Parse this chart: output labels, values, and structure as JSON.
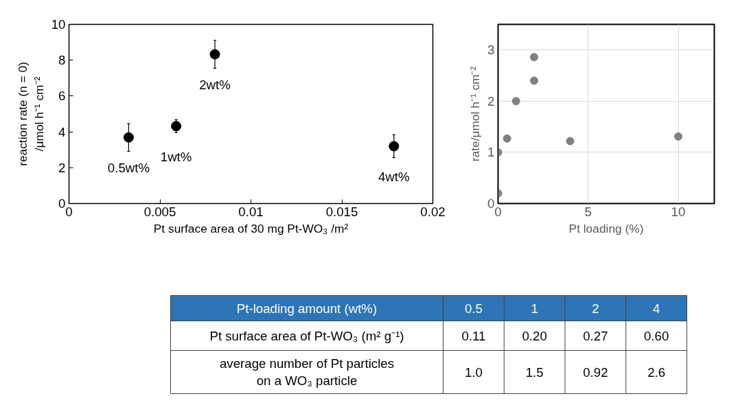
{
  "chart_data": [
    {
      "type": "scatter",
      "xlabel": "Pt surface area of 30 mg Pt-WO₃ /m²",
      "ylabel": "reaction rate (n = 0)\n/μmol h⁻¹ cm⁻²",
      "x": [
        0.00328,
        0.00589,
        0.00802,
        0.01786
      ],
      "values": [
        3.69,
        4.32,
        8.33,
        3.2
      ],
      "errors": [
        0.77,
        0.36,
        0.78,
        0.64
      ],
      "color": "#000000",
      "marker": "circle",
      "xlim": [
        0,
        0.02
      ],
      "ylim": [
        0,
        10
      ],
      "xticks": [
        0,
        0.005,
        0.01,
        0.015,
        0.02
      ],
      "yticks": [
        0,
        2,
        4,
        6,
        8,
        10
      ],
      "grid": false,
      "annotations": [
        {
          "text": "0.5wt%",
          "x": 0.00328,
          "y": 3.69
        },
        {
          "text": "1wt%",
          "x": 0.00589,
          "y": 4.32
        },
        {
          "text": "2wt%",
          "x": 0.00802,
          "y": 8.33
        },
        {
          "text": "4wt%",
          "x": 0.01786,
          "y": 3.2
        }
      ]
    },
    {
      "type": "scatter",
      "xlabel": "Pt loading (%)",
      "ylabel": "rate/μmol h⁻¹ cm⁻²",
      "x": [
        0,
        0,
        0.5,
        1,
        2,
        2,
        4,
        10
      ],
      "values": [
        0.2,
        1.0,
        1.27,
        2.0,
        2.4,
        2.86,
        1.22,
        1.31
      ],
      "color": "#808080",
      "marker": "circle",
      "xlim": [
        0,
        12
      ],
      "ylim": [
        0,
        3.5
      ],
      "xticks": [
        0,
        5,
        10
      ],
      "yticks": [
        0,
        1,
        2,
        3
      ],
      "grid": true
    },
    {
      "type": "other",
      "xlabel": "Pt-loading amount (wt%)",
      "categories": [
        "0.5",
        "1",
        "2",
        "4"
      ],
      "y_categories": [
        "Pt surface area of Pt-WO₃ (m² g⁻¹)",
        "average number of Pt particles\non a WO₃ particle"
      ],
      "cell_labels": [
        [
          "0.11",
          "0.20",
          "0.27",
          "0.60"
        ],
        [
          "1.0",
          "1.5",
          "0.92",
          "2.6"
        ]
      ]
    }
  ]
}
